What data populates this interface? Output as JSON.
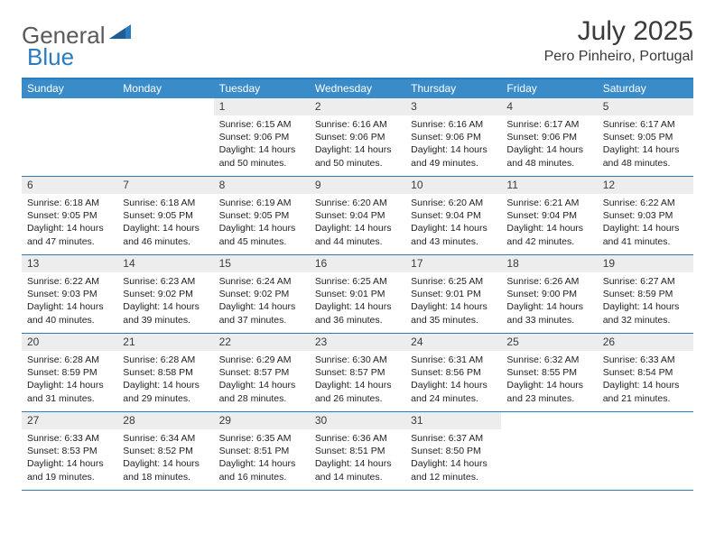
{
  "logo": {
    "text1": "General",
    "text2": "Blue"
  },
  "title": {
    "month": "July 2025",
    "location": "Pero Pinheiro, Portugal"
  },
  "colors": {
    "header_bar": "#3a8cc9",
    "border": "#2b7bbf",
    "daynum_bg": "#ededed",
    "text": "#3a3a3a"
  },
  "day_headers": [
    "Sunday",
    "Monday",
    "Tuesday",
    "Wednesday",
    "Thursday",
    "Friday",
    "Saturday"
  ],
  "weeks": [
    [
      {
        "empty": true
      },
      {
        "empty": true
      },
      {
        "d": "1",
        "sr": "6:15 AM",
        "ss": "9:06 PM",
        "dl": "14 hours and 50 minutes."
      },
      {
        "d": "2",
        "sr": "6:16 AM",
        "ss": "9:06 PM",
        "dl": "14 hours and 50 minutes."
      },
      {
        "d": "3",
        "sr": "6:16 AM",
        "ss": "9:06 PM",
        "dl": "14 hours and 49 minutes."
      },
      {
        "d": "4",
        "sr": "6:17 AM",
        "ss": "9:06 PM",
        "dl": "14 hours and 48 minutes."
      },
      {
        "d": "5",
        "sr": "6:17 AM",
        "ss": "9:05 PM",
        "dl": "14 hours and 48 minutes."
      }
    ],
    [
      {
        "d": "6",
        "sr": "6:18 AM",
        "ss": "9:05 PM",
        "dl": "14 hours and 47 minutes."
      },
      {
        "d": "7",
        "sr": "6:18 AM",
        "ss": "9:05 PM",
        "dl": "14 hours and 46 minutes."
      },
      {
        "d": "8",
        "sr": "6:19 AM",
        "ss": "9:05 PM",
        "dl": "14 hours and 45 minutes."
      },
      {
        "d": "9",
        "sr": "6:20 AM",
        "ss": "9:04 PM",
        "dl": "14 hours and 44 minutes."
      },
      {
        "d": "10",
        "sr": "6:20 AM",
        "ss": "9:04 PM",
        "dl": "14 hours and 43 minutes."
      },
      {
        "d": "11",
        "sr": "6:21 AM",
        "ss": "9:04 PM",
        "dl": "14 hours and 42 minutes."
      },
      {
        "d": "12",
        "sr": "6:22 AM",
        "ss": "9:03 PM",
        "dl": "14 hours and 41 minutes."
      }
    ],
    [
      {
        "d": "13",
        "sr": "6:22 AM",
        "ss": "9:03 PM",
        "dl": "14 hours and 40 minutes."
      },
      {
        "d": "14",
        "sr": "6:23 AM",
        "ss": "9:02 PM",
        "dl": "14 hours and 39 minutes."
      },
      {
        "d": "15",
        "sr": "6:24 AM",
        "ss": "9:02 PM",
        "dl": "14 hours and 37 minutes."
      },
      {
        "d": "16",
        "sr": "6:25 AM",
        "ss": "9:01 PM",
        "dl": "14 hours and 36 minutes."
      },
      {
        "d": "17",
        "sr": "6:25 AM",
        "ss": "9:01 PM",
        "dl": "14 hours and 35 minutes."
      },
      {
        "d": "18",
        "sr": "6:26 AM",
        "ss": "9:00 PM",
        "dl": "14 hours and 33 minutes."
      },
      {
        "d": "19",
        "sr": "6:27 AM",
        "ss": "8:59 PM",
        "dl": "14 hours and 32 minutes."
      }
    ],
    [
      {
        "d": "20",
        "sr": "6:28 AM",
        "ss": "8:59 PM",
        "dl": "14 hours and 31 minutes."
      },
      {
        "d": "21",
        "sr": "6:28 AM",
        "ss": "8:58 PM",
        "dl": "14 hours and 29 minutes."
      },
      {
        "d": "22",
        "sr": "6:29 AM",
        "ss": "8:57 PM",
        "dl": "14 hours and 28 minutes."
      },
      {
        "d": "23",
        "sr": "6:30 AM",
        "ss": "8:57 PM",
        "dl": "14 hours and 26 minutes."
      },
      {
        "d": "24",
        "sr": "6:31 AM",
        "ss": "8:56 PM",
        "dl": "14 hours and 24 minutes."
      },
      {
        "d": "25",
        "sr": "6:32 AM",
        "ss": "8:55 PM",
        "dl": "14 hours and 23 minutes."
      },
      {
        "d": "26",
        "sr": "6:33 AM",
        "ss": "8:54 PM",
        "dl": "14 hours and 21 minutes."
      }
    ],
    [
      {
        "d": "27",
        "sr": "6:33 AM",
        "ss": "8:53 PM",
        "dl": "14 hours and 19 minutes."
      },
      {
        "d": "28",
        "sr": "6:34 AM",
        "ss": "8:52 PM",
        "dl": "14 hours and 18 minutes."
      },
      {
        "d": "29",
        "sr": "6:35 AM",
        "ss": "8:51 PM",
        "dl": "14 hours and 16 minutes."
      },
      {
        "d": "30",
        "sr": "6:36 AM",
        "ss": "8:51 PM",
        "dl": "14 hours and 14 minutes."
      },
      {
        "d": "31",
        "sr": "6:37 AM",
        "ss": "8:50 PM",
        "dl": "14 hours and 12 minutes."
      },
      {
        "empty": true
      },
      {
        "empty": true
      }
    ]
  ],
  "labels": {
    "sunrise": "Sunrise:",
    "sunset": "Sunset:",
    "daylight": "Daylight:"
  }
}
